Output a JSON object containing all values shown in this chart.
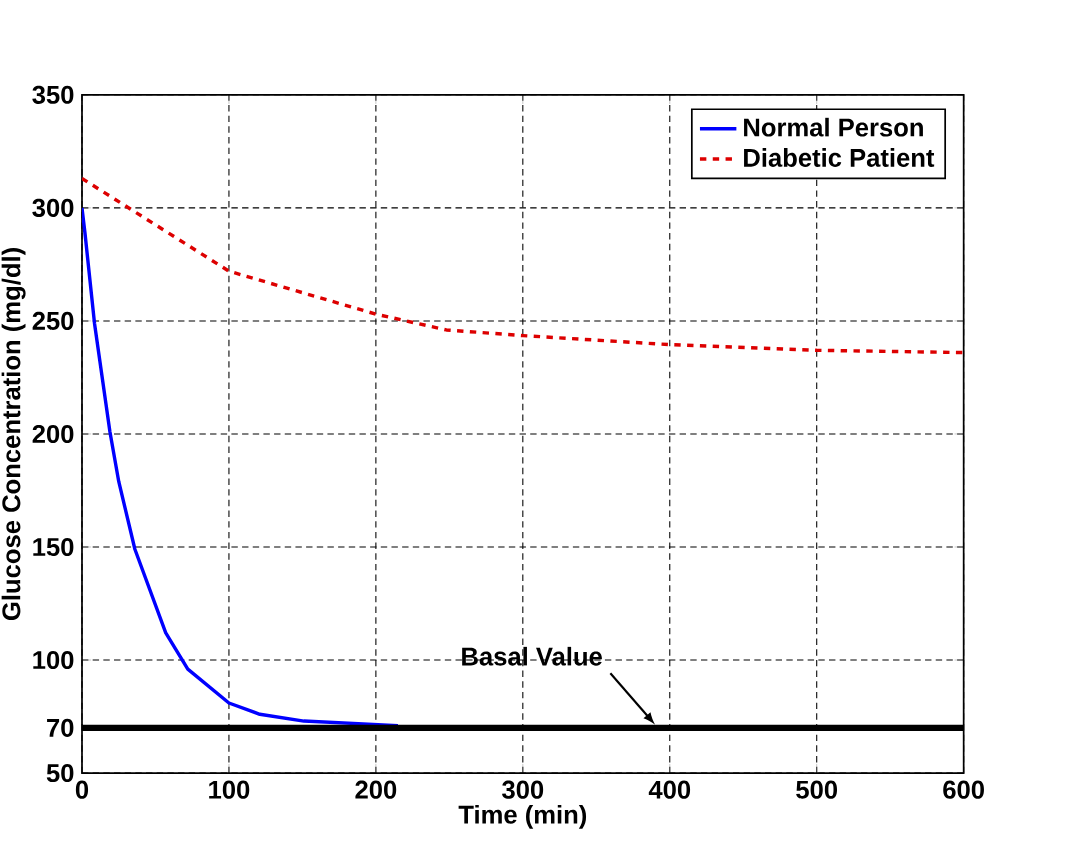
{
  "chart_data": {
    "type": "line",
    "xlabel": "Time (min)",
    "ylabel": "Glucose Concentration (mg/dl)",
    "xlim": [
      0,
      600
    ],
    "ylim": [
      50,
      350
    ],
    "xticks": [
      0,
      100,
      200,
      300,
      400,
      500,
      600
    ],
    "yticks": [
      50,
      70,
      100,
      150,
      200,
      250,
      300,
      350
    ],
    "grid": true,
    "legend": "top right",
    "series": [
      {
        "name": "Normal Person",
        "color": "#0000ff",
        "line_style": "solid",
        "x": [
          0,
          2,
          8.5,
          19,
          25,
          36,
          57,
          72,
          100,
          121,
          151,
          215
        ],
        "values": [
          300,
          289,
          249,
          201,
          179,
          149,
          112,
          96,
          81,
          76,
          73,
          71
        ]
      },
      {
        "name": "Diabetic Patient",
        "color": "#dd0000",
        "line_style": "dashed",
        "x": [
          0,
          100,
          200,
          248,
          300,
          400,
          500,
          600
        ],
        "values": [
          313,
          272,
          253,
          246,
          243.5,
          239.5,
          237,
          236
        ]
      }
    ],
    "ref_lines": [
      {
        "axis": "y",
        "value": 70,
        "label": "Basal Value",
        "color": "#000000"
      }
    ]
  }
}
